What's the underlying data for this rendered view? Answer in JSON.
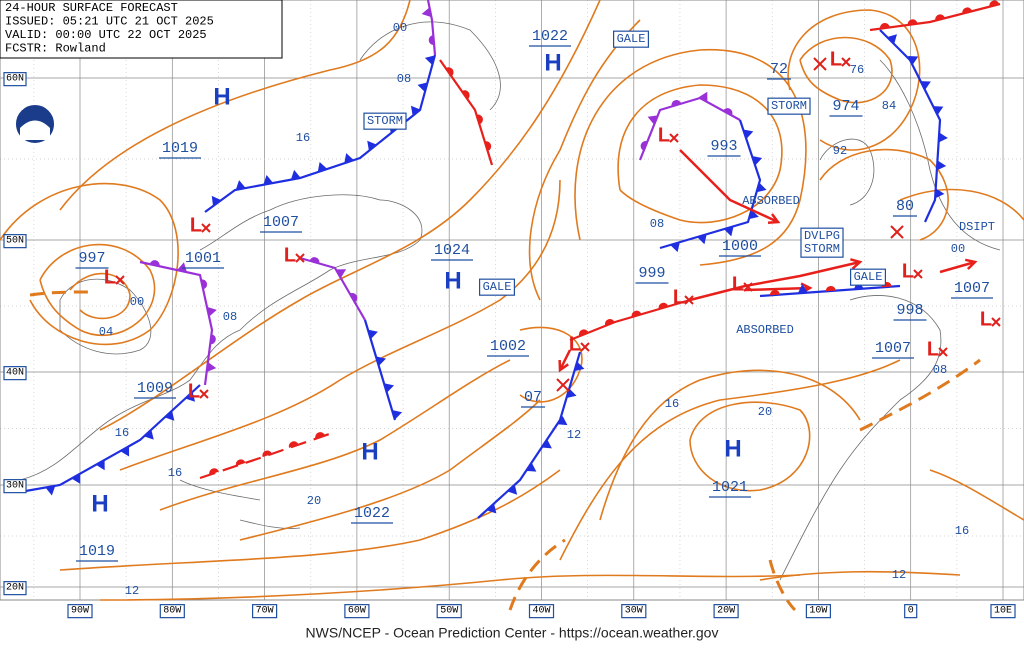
{
  "header": {
    "lines": [
      "24-HOUR SURFACE FORECAST",
      "ISSUED: 05:21 UTC 21 OCT 2025",
      "VALID:  00:00 UTC 22 OCT 2025",
      "FCSTR:  Rowland"
    ]
  },
  "lat_labels": [
    "60N",
    "50N",
    "40N",
    "30N",
    "20N"
  ],
  "lon_labels": [
    "90W",
    "80W",
    "70W",
    "60W",
    "50W",
    "40W",
    "30W",
    "20W",
    "10W",
    "0",
    "10E"
  ],
  "pressure_labels": [
    "1019",
    "1007",
    "997",
    "1001",
    "1009",
    "1019",
    "1022",
    "1024",
    "1002",
    "07",
    "999",
    "1000",
    "993",
    "974",
    "72",
    "80",
    "998",
    "1007",
    "1007",
    "1021",
    "1022"
  ],
  "isobar_labels": [
    "00",
    "08",
    "16",
    "00",
    "04",
    "08",
    "16",
    "16",
    "20",
    "12",
    "16",
    "20",
    "12",
    "08",
    "92",
    "84",
    "76",
    "00",
    "08",
    "16",
    "12"
  ],
  "warnings": [
    "STORM",
    "STORM",
    "GALE",
    "GALE",
    "GALE"
  ],
  "developing_storm": [
    "DVLPG",
    "STORM"
  ],
  "notes": [
    "ABSORBED",
    "ABSORBED",
    "DSIPT"
  ],
  "highs": [
    "H",
    "H",
    "H",
    "H",
    "H",
    "H"
  ],
  "lows": [
    "L",
    "L",
    "L",
    "L",
    "L",
    "L",
    "L",
    "L",
    "L",
    "L",
    "L",
    "L"
  ],
  "footer": "NWS/NCEP - Ocean Prediction Center - https://ocean.weather.gov"
}
